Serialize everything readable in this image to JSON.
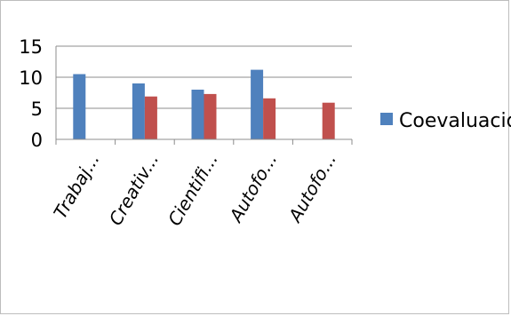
{
  "chart_data": {
    "type": "bar",
    "categories": [
      "Trabaj...",
      "Creativ...",
      "Cientifi...",
      "Autofo...",
      "Autofo..."
    ],
    "series": [
      {
        "name": "Coevaluación",
        "values": [
          10.5,
          9.0,
          8.0,
          11.2,
          null
        ],
        "color": "#4f81bd"
      },
      {
        "name": "",
        "values": [
          null,
          6.9,
          7.3,
          6.6,
          5.9
        ],
        "color": "#c0504d"
      }
    ],
    "yticks": [
      "0",
      "5",
      "10",
      "15"
    ],
    "ylim": [
      0,
      15
    ],
    "grid": true,
    "legend": {
      "position": "right",
      "entries": [
        "Coevaluación"
      ]
    }
  }
}
